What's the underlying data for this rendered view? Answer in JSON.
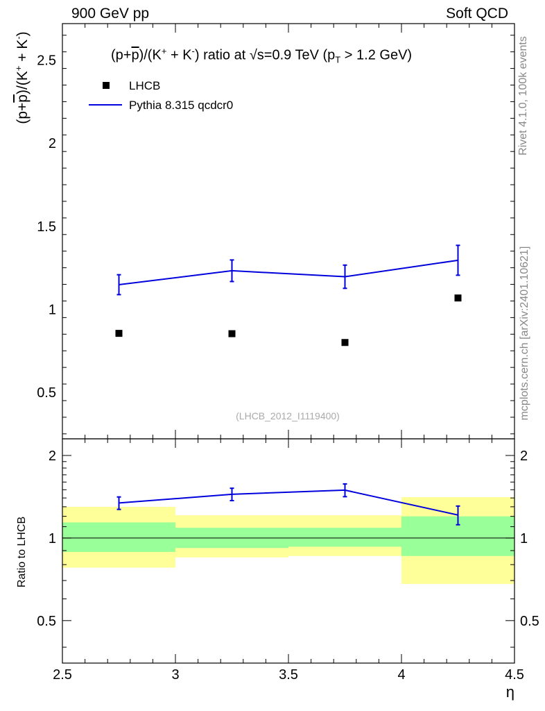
{
  "header": {
    "left": "900 GeV pp",
    "right": "Soft QCD"
  },
  "side_labels": {
    "rivet": "Rivet 4.1.0,  100k events",
    "mcplots": "mcplots.cern.ch [arXiv:2401.10621]"
  },
  "chart_data": [
    {
      "type": "scatter",
      "panel": "main",
      "title": "(p+p̅)/(K⁺ + K⁻) ratio at √s=0.9 TeV (p_T > 1.2 GeV)",
      "title_parts": {
        "a": "(p+",
        "b": "p",
        "c": ")/(K",
        "d": "+",
        "e": " + K",
        "f": "-",
        "g": ") ratio at ",
        "h": "√",
        "i": "s=0.9 TeV (p",
        "j": "T",
        "k": " > 1.2 GeV)"
      },
      "ylabel": "(p+p̅)/(K⁺ + K⁻)",
      "ylabel_parts": {
        "a": "(p+",
        "b": "p",
        "c": ")/(K",
        "d": "+",
        "e": " + K",
        "f": "-",
        "g": ")"
      },
      "xlim": [
        2.5,
        4.5
      ],
      "ylim": [
        0.22,
        2.72
      ],
      "y_major_ticks": [
        0.5,
        1,
        1.5,
        2,
        2.5
      ],
      "y_tick_labels": [
        "0.5",
        "1",
        "1.5",
        "2",
        "2.5"
      ],
      "legend_position": "top-left",
      "watermark": "(LHCB_2012_I1119400)",
      "series": [
        {
          "name": "LHCB",
          "kind": "data",
          "color": "#000000",
          "x": [
            2.75,
            3.25,
            3.75,
            4.25
          ],
          "y": [
            0.855,
            0.853,
            0.8,
            1.068
          ]
        },
        {
          "name": "Pythia 8.315 qcdcr0",
          "kind": "mc",
          "color": "#0000dd",
          "x": [
            2.75,
            3.25,
            3.75,
            4.25
          ],
          "y": [
            1.148,
            1.232,
            1.196,
            1.295
          ],
          "yerr": [
            0.06,
            0.065,
            0.07,
            0.09
          ]
        }
      ]
    },
    {
      "type": "line",
      "panel": "ratio",
      "ylabel": "Ratio to LHCB",
      "xlabel": "η",
      "xlim": [
        2.5,
        4.5
      ],
      "ylim": [
        0.35,
        2.3
      ],
      "y_major_ticks": [
        0.5,
        1,
        2
      ],
      "y_tick_labels": [
        "0.5",
        "1",
        "2"
      ],
      "x_major_ticks": [
        2.5,
        3,
        3.5,
        4,
        4.5
      ],
      "x_tick_labels": [
        "2.5",
        "3",
        "3.5",
        "4",
        "4.5"
      ],
      "reference_line": 1,
      "bands": [
        {
          "x0": 2.5,
          "x1": 3.0,
          "green": [
            0.89,
            1.14
          ],
          "yellow": [
            0.78,
            1.3
          ]
        },
        {
          "x0": 3.0,
          "x1": 3.5,
          "green": [
            0.92,
            1.09
          ],
          "yellow": [
            0.85,
            1.21
          ]
        },
        {
          "x0": 3.5,
          "x1": 4.0,
          "green": [
            0.93,
            1.09
          ],
          "yellow": [
            0.86,
            1.21
          ]
        },
        {
          "x0": 4.0,
          "x1": 4.5,
          "green": [
            0.86,
            1.2
          ],
          "yellow": [
            0.68,
            1.41
          ]
        }
      ],
      "series": [
        {
          "name": "Pythia 8.315 qcdcr0",
          "color": "#0000dd",
          "x": [
            2.75,
            3.25,
            3.75,
            4.25
          ],
          "y": [
            1.342,
            1.444,
            1.495,
            1.213
          ],
          "yerr": [
            0.07,
            0.075,
            0.08,
            0.095
          ]
        }
      ]
    }
  ]
}
